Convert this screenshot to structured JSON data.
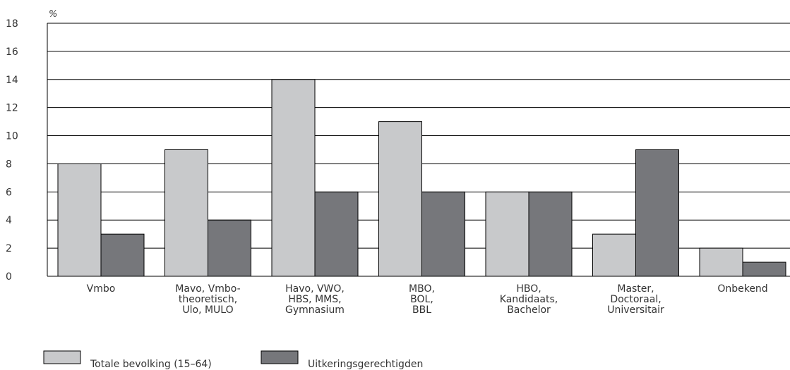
{
  "chart_data": {
    "type": "bar",
    "unit_label": "%",
    "categories": [
      [
        "Vmbo"
      ],
      [
        "Mavo, Vmbo-",
        "theoretisch,",
        "Ulo, MULO"
      ],
      [
        "Havo, VWO,",
        "HBS, MMS,",
        "Gymnasium"
      ],
      [
        "MBO,",
        "BOL,",
        "BBL"
      ],
      [
        "HBO,",
        "Kandidaats,",
        "Bachelor"
      ],
      [
        "Master,",
        "Doctoraal,",
        "Universitair"
      ],
      [
        "Onbekend"
      ]
    ],
    "series": [
      {
        "name": "Totale bevolking (15–64)",
        "color": "#c8c9cb",
        "values": [
          8,
          9,
          14,
          11,
          6,
          3,
          2
        ]
      },
      {
        "name": "Uitkeringsgerechtigden",
        "color": "#76777b",
        "values": [
          3,
          4,
          6,
          6,
          6,
          9,
          1
        ]
      }
    ],
    "ylim": [
      0,
      18
    ],
    "yticks": [
      0,
      2,
      4,
      6,
      8,
      10,
      12,
      14,
      16,
      18
    ],
    "grid": true,
    "legend_position": "bottom-left"
  }
}
